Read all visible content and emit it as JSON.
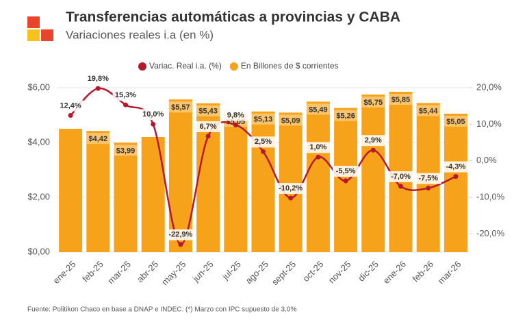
{
  "chart_data": {
    "type": "combo",
    "title": "Transferencias automáticas a provincias y CABA",
    "subtitle": "Variaciones reales i.a (en %)",
    "source": "Fuente: Politikon Chaco en base a DNAP e INDEC. (*) Marzo con IPC supuesto de 3,0%",
    "categories": [
      "ene-25",
      "feb-25",
      "mar-25",
      "abr-25",
      "may-25",
      "jun-25",
      "jul-25",
      "ago-25",
      "sept-25",
      "oct-25",
      "nov-25",
      "dic-25",
      "ene-26",
      "feb-26",
      "mar-26"
    ],
    "series": [
      {
        "name": "Variac. Real i.a. (%)",
        "type": "line",
        "axis": "y2",
        "color": "#b5182b",
        "values": [
          12.4,
          19.8,
          15.3,
          10.0,
          -22.9,
          6.7,
          9.8,
          2.5,
          -10.2,
          1.0,
          -5.5,
          2.9,
          -7.0,
          -7.5,
          -4.3
        ],
        "value_labels": [
          "12,4%",
          "19,8%",
          "15,3%",
          "10,0%",
          "-22,9%",
          "6,7%",
          "9,8%",
          "2,5%",
          "-10,2%",
          "1,0%",
          "-5,5%",
          "2,9%",
          "-7,0%",
          "-7,5%",
          "-4,3%"
        ]
      },
      {
        "name": "En Billones de $ corrientes",
        "type": "bar",
        "color": "#f7a21b",
        "values": [
          4.5,
          4.42,
          3.99,
          4.2,
          5.57,
          5.43,
          5.05,
          5.13,
          5.09,
          5.49,
          5.26,
          5.75,
          5.85,
          5.44,
          5.05
        ],
        "value_labels": [
          null,
          "$4,42",
          "$3,99",
          null,
          "$5,57",
          "$5,43",
          "$5,05",
          "$5,13",
          "$5,09",
          "$5,49",
          "$5,26",
          "$5,75",
          "$5,85",
          "$5,44",
          "$5,05"
        ]
      }
    ],
    "ylim": [
      0,
      6
    ],
    "yticks": [
      {
        "value": 0,
        "label": "$0,00"
      },
      {
        "value": 2,
        "label": "$2,00"
      },
      {
        "value": 4,
        "label": "$4,00"
      },
      {
        "value": 6,
        "label": "$6,00"
      }
    ],
    "y2lim": [
      -25,
      20
    ],
    "y2ticks": [
      {
        "value": -20,
        "label": "-20,0%"
      },
      {
        "value": -10,
        "label": "-10,0%"
      },
      {
        "value": 0,
        "label": "0,0%"
      },
      {
        "value": 10,
        "label": "10,0%"
      },
      {
        "value": 20,
        "label": "20,0%"
      }
    ],
    "grid": true
  }
}
